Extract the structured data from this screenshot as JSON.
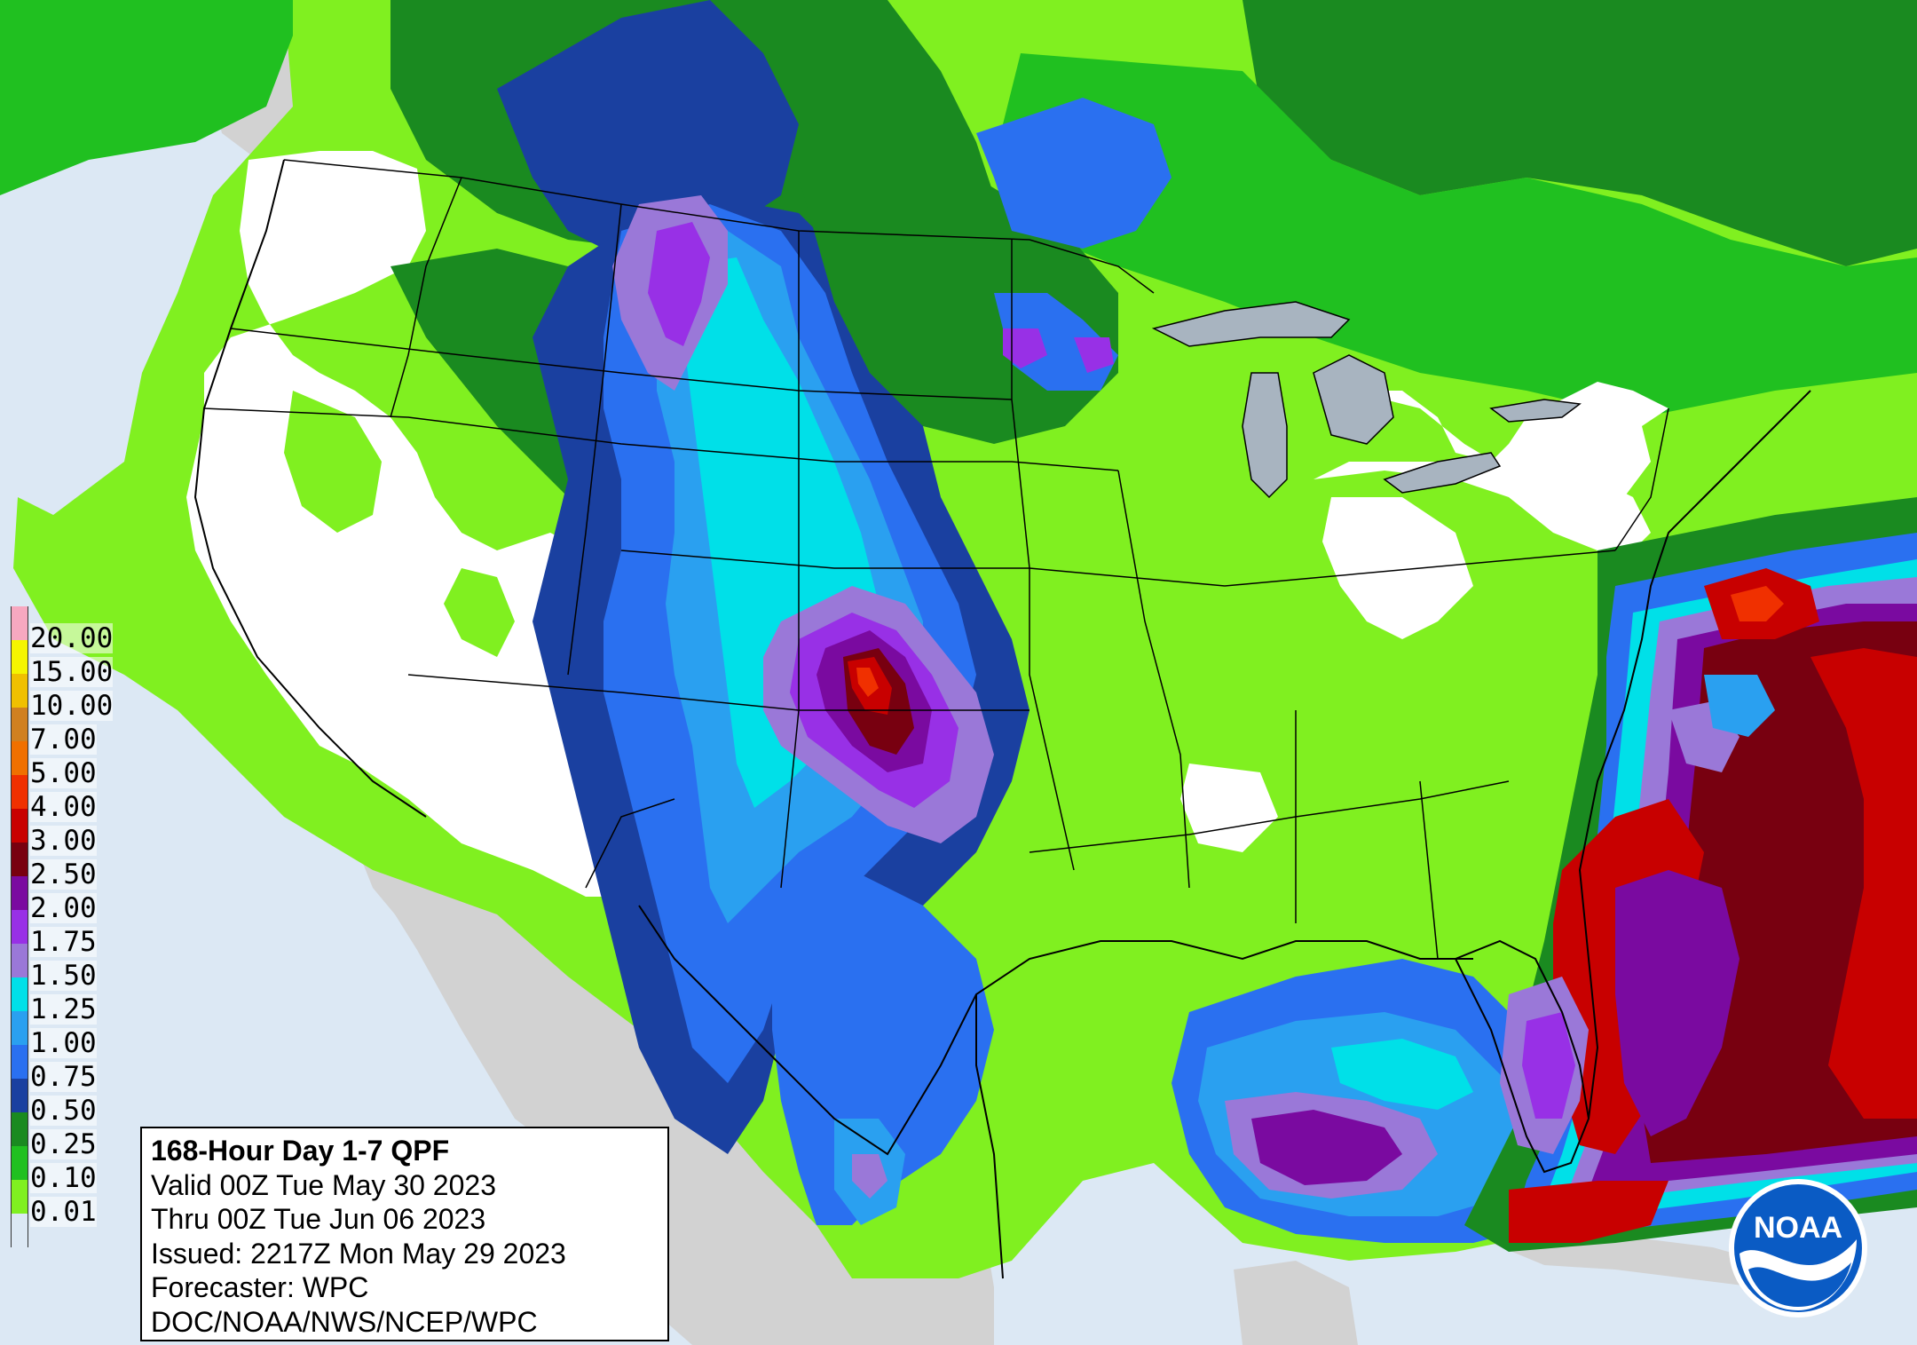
{
  "info": {
    "title": "168-Hour Day 1-7 QPF",
    "valid": "Valid 00Z Tue May 30 2023",
    "thru": "Thru 00Z Tue Jun 06 2023",
    "issued": "Issued: 2217Z Mon May 29 2023",
    "forecaster": "Forecaster: WPC",
    "agency": "DOC/NOAA/NWS/NCEP/WPC"
  },
  "logo": {
    "text": "NOAA"
  },
  "legend": [
    {
      "label": "20.00",
      "color": "#f7a8c0"
    },
    {
      "label": "15.00",
      "color": "#f5f500"
    },
    {
      "label": "10.00",
      "color": "#f0c000"
    },
    {
      "label": "7.00",
      "color": "#d08020"
    },
    {
      "label": "5.00",
      "color": "#f07000"
    },
    {
      "label": "4.00",
      "color": "#f03000"
    },
    {
      "label": "3.00",
      "color": "#c80000"
    },
    {
      "label": "2.50",
      "color": "#780010"
    },
    {
      "label": "2.00",
      "color": "#7a0aa0"
    },
    {
      "label": "1.75",
      "color": "#9830e6"
    },
    {
      "label": "1.50",
      "color": "#9a78d8"
    },
    {
      "label": "1.25",
      "color": "#00e0e8"
    },
    {
      "label": "1.00",
      "color": "#2aa0f0"
    },
    {
      "label": "0.75",
      "color": "#2a70f0"
    },
    {
      "label": "0.50",
      "color": "#1a40a0"
    },
    {
      "label": "0.25",
      "color": "#1a8a20"
    },
    {
      "label": "0.10",
      "color": "#20c020"
    },
    {
      "label": "0.01",
      "color": "#80f020"
    },
    {
      "label": "",
      "color": "#dce8f4"
    }
  ],
  "colors": {
    "ocean": "#dce8f4",
    "land_outside": "#d2d2d2",
    "dry": "#ffffff",
    "lake": "#a8b4c0"
  }
}
